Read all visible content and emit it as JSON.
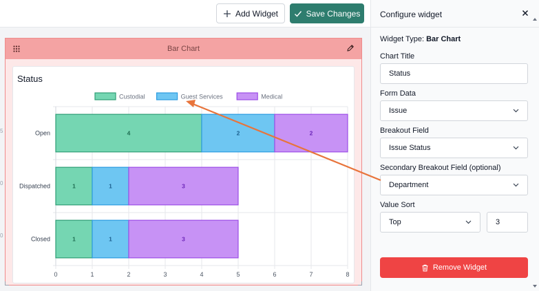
{
  "toolbar": {
    "add_widget_label": "Add Widget",
    "save_changes_label": "Save Changes"
  },
  "widget": {
    "header_title": "Bar Chart"
  },
  "chart_data": {
    "type": "bar",
    "orientation": "horizontal",
    "stacked": true,
    "title": "Status",
    "categories": [
      "Open",
      "Dispatched",
      "Closed"
    ],
    "series": [
      {
        "name": "Custodial",
        "values": [
          4,
          1,
          1
        ],
        "color": "#75d6b2",
        "border": "#2e9e75",
        "label_color": "#1f6e52"
      },
      {
        "name": "Guest Services",
        "values": [
          2,
          1,
          1
        ],
        "color": "#6ec6f2",
        "border": "#2b9be0",
        "label_color": "#1c5f8e"
      },
      {
        "name": "Medical",
        "values": [
          2,
          3,
          3
        ],
        "color": "#c792f5",
        "border": "#9b4de6",
        "label_color": "#6b24b8"
      }
    ],
    "xlim": [
      0,
      8
    ],
    "x_ticks": [
      0,
      1,
      2,
      3,
      4,
      5,
      6,
      7,
      8
    ],
    "grid": true,
    "legend_position": "top"
  },
  "panel": {
    "title": "Configure widget",
    "widget_type_label": "Widget Type:",
    "widget_type_value": "Bar Chart",
    "chart_title_label": "Chart Title",
    "chart_title_value": "Status",
    "form_data_label": "Form Data",
    "form_data_value": "Issue",
    "breakout_label": "Breakout Field",
    "breakout_value": "Issue Status",
    "secondary_label": "Secondary Breakout Field (optional)",
    "secondary_value": "Department",
    "value_sort_label": "Value Sort",
    "value_sort_value": "Top",
    "value_count": "3",
    "remove_label": "Remove Widget"
  },
  "colors": {
    "accent": "#2e7d6e",
    "danger": "#ef4444",
    "annotation_arrow": "#e8743b"
  }
}
